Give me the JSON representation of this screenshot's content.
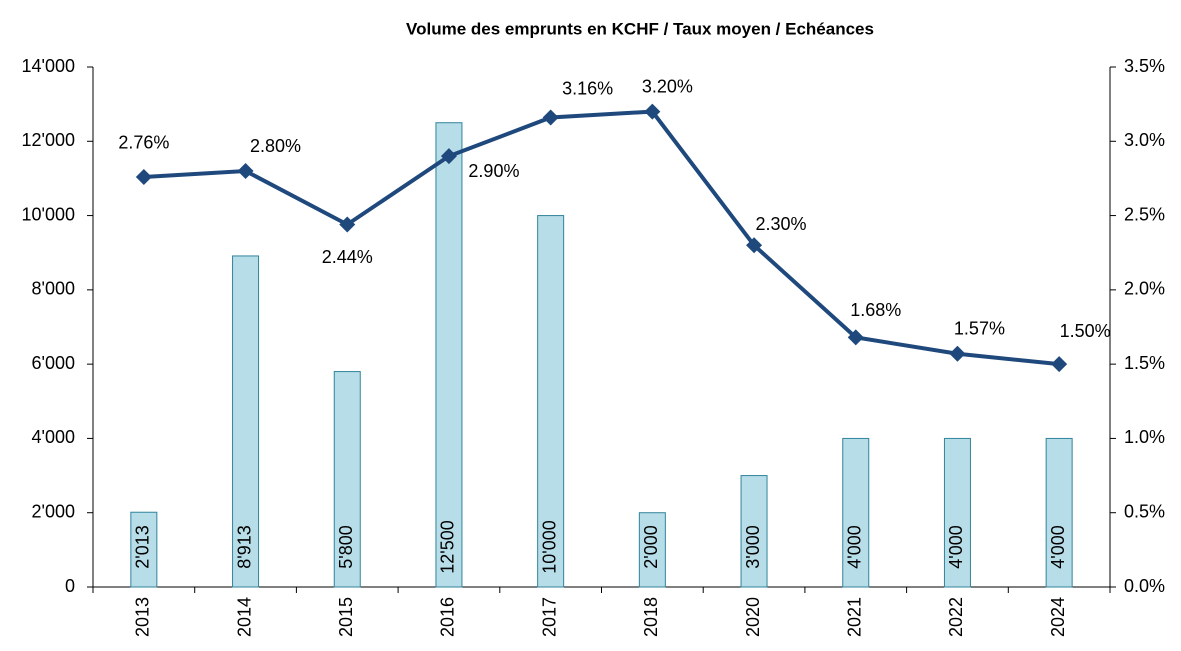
{
  "chart_data": {
    "type": "bar",
    "title": "Volume des emprunts en KCHF / Taux moyen / Echéances",
    "categories": [
      "2013",
      "2014",
      "2015",
      "2016",
      "2017",
      "2018",
      "2020",
      "2021",
      "2022",
      "2024"
    ],
    "series": [
      {
        "type": "bar",
        "color": "#b7dde8",
        "values": [
          2013,
          8913,
          5800,
          12500,
          10000,
          2000,
          3000,
          4000,
          4000,
          4000
        ],
        "value_labels": [
          "2'013",
          "8'913",
          "5'800",
          "12'500",
          "10'000",
          "2'000",
          "3'000",
          "4'000",
          "4'000",
          "4'000"
        ]
      },
      {
        "type": "line",
        "axis": "y2",
        "color": "#1f497d",
        "values": [
          2.76,
          2.8,
          2.44,
          2.9,
          3.16,
          3.2,
          2.3,
          1.68,
          1.57,
          1.5
        ],
        "value_labels": [
          "2.76%",
          "2.80%",
          "2.44%",
          "2.90%",
          "3.16%",
          "3.20%",
          "2.30%",
          "1.68%",
          "1.57%",
          "1.50%"
        ]
      }
    ],
    "ylim": [
      0,
      14000
    ],
    "yticks": [
      0,
      {
        "value": 2000,
        "label": "2'000"
      },
      {
        "value": 4000,
        "label": "4'000"
      },
      {
        "value": 6000,
        "label": "6'000"
      },
      {
        "value": 8000,
        "label": "8'000"
      },
      {
        "value": 10000,
        "label": "10'000"
      },
      {
        "value": 12000,
        "label": "12'000"
      },
      {
        "value": 14000,
        "label": "14'000"
      }
    ],
    "y2lim": [
      0,
      3.5
    ],
    "y2ticks": [
      {
        "value": 0,
        "label": "0.0%"
      },
      {
        "value": 0.5,
        "label": "0.5%"
      },
      {
        "value": 1,
        "label": "1.0%"
      },
      {
        "value": 1.5,
        "label": "1.5%"
      },
      {
        "value": 2,
        "label": "2.0%"
      },
      {
        "value": 2.5,
        "label": "2.5%"
      },
      {
        "value": 3,
        "label": "3.0%"
      },
      {
        "value": 3.5,
        "label": "3.5%"
      }
    ]
  }
}
